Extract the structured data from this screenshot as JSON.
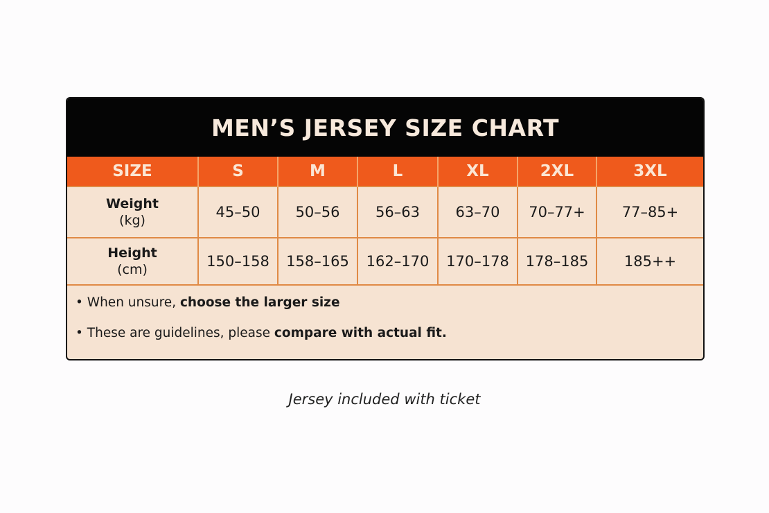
{
  "title": "MEN’S JERSEY SIZE CHART",
  "header": [
    "SIZE",
    "S",
    "M",
    "L",
    "XL",
    "2XL",
    "3XL"
  ],
  "rows": [
    {
      "label": "Weight",
      "unit": "(kg)",
      "values": [
        "45–50",
        "50–56",
        "56–63",
        "63–70",
        "70–77+",
        "77–85+"
      ]
    },
    {
      "label": "Height",
      "unit": "(cm)",
      "values": [
        "150–158",
        "158–165",
        "162–170",
        "170–178",
        "178–185",
        "185++"
      ]
    }
  ],
  "notes": [
    {
      "text": "• When unsure, ",
      "bold": "choose the larger size"
    },
    {
      "text": "• These are guidelines, please ",
      "bold": "compare with actual fit."
    }
  ],
  "caption": "Jersey included with ticket",
  "colors": {
    "title_bg": "#050505",
    "header_bg": "#ef5a1c",
    "body_bg": "#f6e3d2",
    "grid": "#e08a45"
  }
}
